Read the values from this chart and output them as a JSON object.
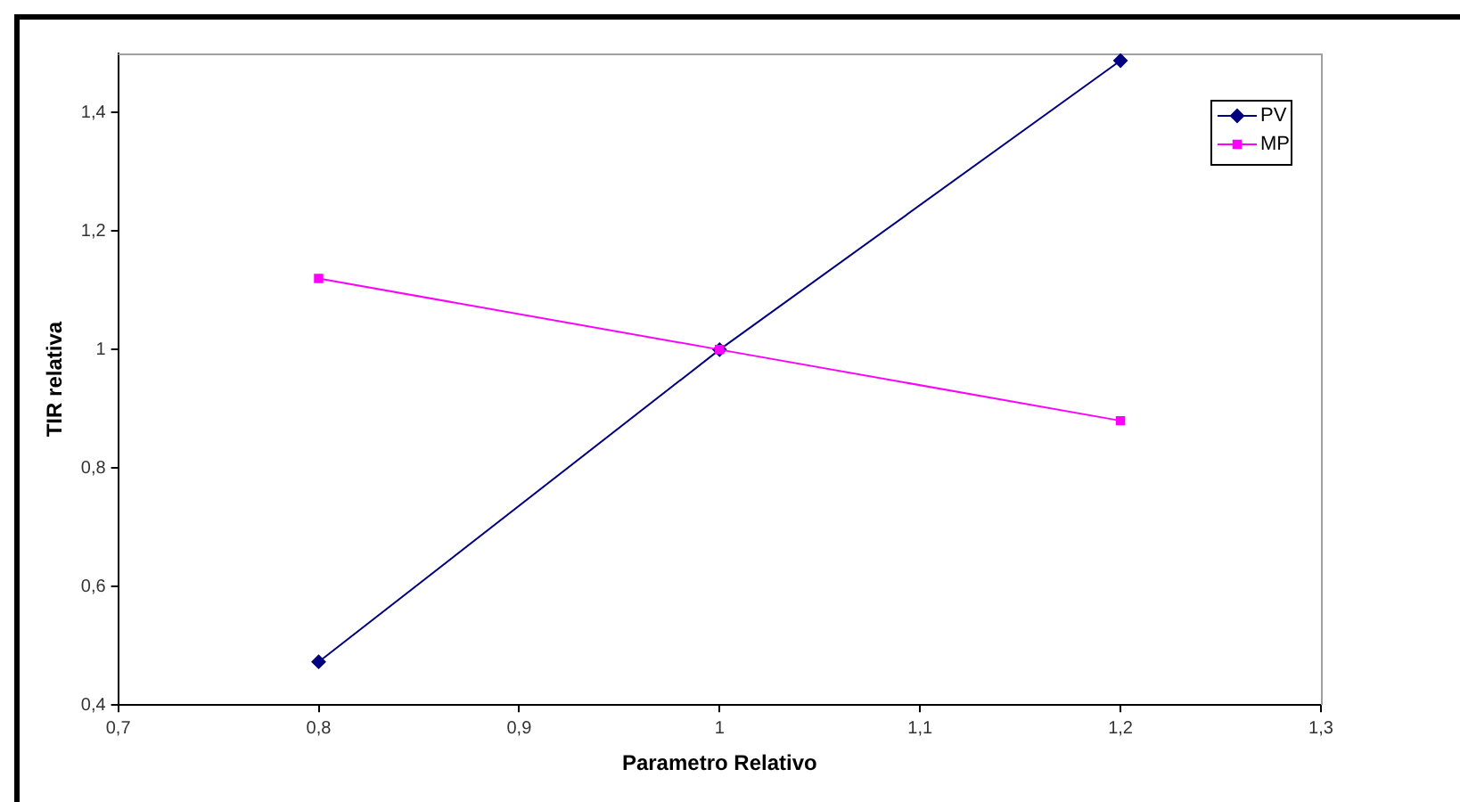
{
  "chart_data": {
    "type": "line",
    "xlabel": "Parametro Relativo",
    "ylabel": "TIR relativa",
    "x": [
      0.8,
      1,
      1.2
    ],
    "series": [
      {
        "name": "PV",
        "color": "#000080",
        "values": [
          0.473,
          1,
          1.488
        ],
        "marker": "diamond"
      },
      {
        "name": "MP",
        "color": "#ff00ff",
        "values": [
          1.12,
          1,
          0.88
        ],
        "marker": "square"
      }
    ],
    "xlim": [
      0.7,
      1.3
    ],
    "xticks": [
      {
        "value": 0.7,
        "label": "0,7"
      },
      {
        "value": 0.8,
        "label": "0,8"
      },
      {
        "value": 0.9,
        "label": "0,9"
      },
      {
        "value": 1,
        "label": "1"
      },
      {
        "value": 1.1,
        "label": "1,1"
      },
      {
        "value": 1.2,
        "label": "1,2"
      },
      {
        "value": 1.3,
        "label": "1,3"
      }
    ],
    "ylim": [
      0.4,
      1.5
    ],
    "yticks": [
      {
        "value": 0.4,
        "label": "0,4"
      },
      {
        "value": 0.6,
        "label": "0,6"
      },
      {
        "value": 0.8,
        "label": "0,8"
      },
      {
        "value": 1,
        "label": "1"
      },
      {
        "value": 1.2,
        "label": "1,2"
      },
      {
        "value": 1.4,
        "label": "1,4"
      }
    ],
    "grid": false,
    "legend": "top right",
    "line_style": "solid"
  }
}
